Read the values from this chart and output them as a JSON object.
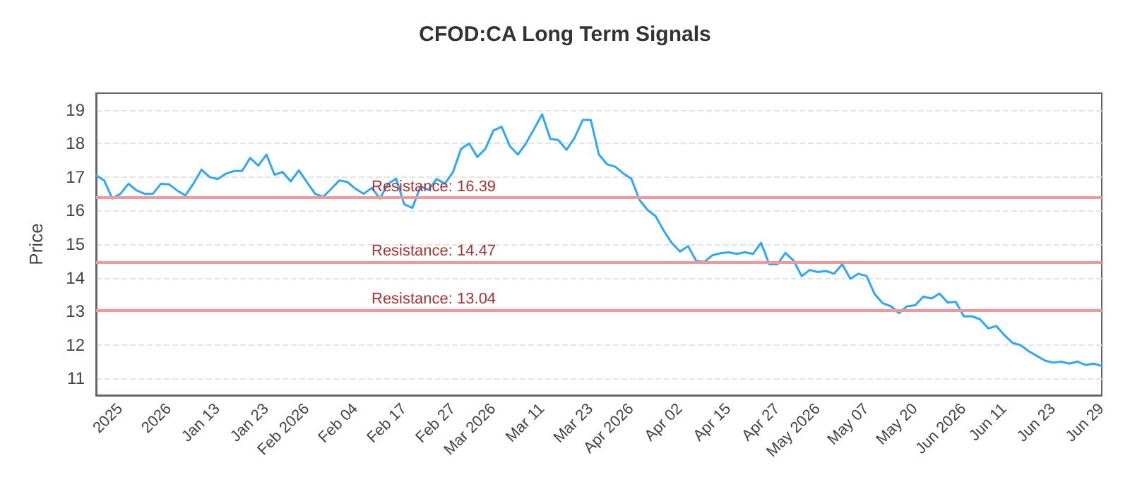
{
  "chart_data": {
    "type": "line",
    "title": "CFOD:CA Long Term Signals",
    "ylabel": "Price",
    "categories": [
      null,
      null,
      null,
      "2025",
      null,
      null,
      null,
      null,
      null,
      "2026",
      null,
      null,
      null,
      null,
      null,
      "Jan 13",
      null,
      null,
      null,
      null,
      null,
      "Jan 23",
      null,
      null,
      null,
      null,
      "Feb 2026",
      null,
      null,
      null,
      null,
      null,
      "Feb 04",
      null,
      null,
      null,
      null,
      null,
      "Feb 17",
      null,
      null,
      null,
      null,
      null,
      "Feb 27",
      null,
      null,
      null,
      null,
      "Mar 2026",
      null,
      null,
      null,
      null,
      null,
      "Mar 11",
      null,
      null,
      null,
      null,
      null,
      "Mar 23",
      null,
      null,
      null,
      null,
      "Apr 2026",
      null,
      null,
      null,
      null,
      null,
      "Apr 02",
      null,
      null,
      null,
      null,
      null,
      "Apr 15",
      null,
      null,
      null,
      null,
      null,
      "Apr 27",
      null,
      null,
      null,
      null,
      "May 2026",
      null,
      null,
      null,
      null,
      null,
      "May 07",
      null,
      null,
      null,
      null,
      null,
      "May 20",
      null,
      null,
      null,
      null,
      null,
      "Jun 2026",
      null,
      null,
      null,
      null,
      "Jun 11",
      null,
      null,
      null,
      null,
      null,
      "Jun 23",
      null,
      null,
      null,
      null,
      null,
      "Jun 29"
    ],
    "series": [
      {
        "color": "#2ea7f7",
        "values": [
          17.05,
          16.9,
          16.36,
          16.5,
          16.8,
          16.6,
          16.5,
          16.5,
          16.8,
          16.78,
          16.6,
          16.45,
          16.8,
          17.22,
          17.0,
          16.94,
          17.1,
          17.18,
          17.18,
          17.57,
          17.34,
          17.67,
          17.07,
          17.15,
          16.87,
          17.2,
          16.85,
          16.5,
          16.41,
          16.65,
          16.9,
          16.85,
          16.65,
          16.5,
          16.68,
          16.36,
          16.8,
          16.95,
          16.19,
          16.08,
          16.72,
          16.62,
          16.94,
          16.8,
          17.14,
          17.84,
          18.0,
          17.6,
          17.84,
          18.39,
          18.5,
          17.93,
          17.67,
          18.0,
          18.43,
          18.87,
          18.14,
          18.1,
          17.81,
          18.17,
          18.7,
          18.7,
          17.67,
          17.38,
          17.31,
          17.11,
          16.95,
          16.32,
          16.02,
          15.83,
          15.4,
          15.03,
          14.78,
          14.94,
          14.5,
          14.47,
          14.67,
          14.73,
          14.76,
          14.71,
          14.76,
          14.71,
          15.04,
          14.4,
          14.4,
          14.74,
          14.51,
          14.05,
          14.23,
          14.17,
          14.2,
          14.12,
          14.4,
          13.97,
          14.12,
          14.05,
          13.51,
          13.24,
          13.15,
          12.95,
          13.15,
          13.18,
          13.44,
          13.38,
          13.53,
          13.26,
          13.28,
          12.85,
          12.85,
          12.76,
          12.49,
          12.56,
          12.29,
          12.06,
          11.99,
          11.81,
          11.67,
          11.53,
          11.47,
          11.5,
          11.44,
          11.5,
          11.4,
          11.44,
          11.37
        ]
      }
    ],
    "ylim": [
      10.5,
      19.5
    ],
    "yticks": [
      11,
      12,
      13,
      14,
      15,
      16,
      17,
      18,
      19
    ],
    "grid": "y",
    "marker": "none",
    "line_style": "solid",
    "ref_lines": [
      {
        "axis": "y",
        "value": 16.39,
        "label": "Resistance: 16.39",
        "color": "#ef9a9a"
      },
      {
        "axis": "y",
        "value": 14.47,
        "label": "Resistance: 14.47",
        "color": "#ef9a9a"
      },
      {
        "axis": "y",
        "value": 13.04,
        "label": "Resistance: 13.04",
        "color": "#ef9a9a"
      }
    ]
  }
}
